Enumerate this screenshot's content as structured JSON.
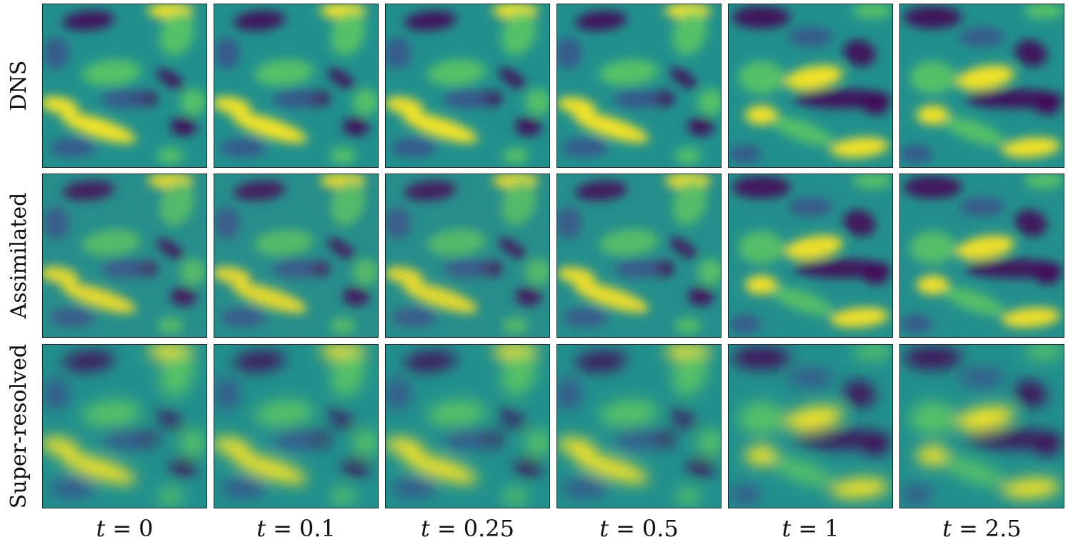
{
  "figure": {
    "rows": [
      {
        "label": "DNS",
        "texture": "smooth"
      },
      {
        "label": "Assimilated",
        "texture": "noisy"
      },
      {
        "label": "Super-resolved",
        "texture": "blurred"
      }
    ],
    "columns": [
      {
        "t_value": "0"
      },
      {
        "t_value": "0.1"
      },
      {
        "t_value": "0.25"
      },
      {
        "t_value": "0.5"
      },
      {
        "t_value": "1"
      },
      {
        "t_value": "2.5"
      }
    ],
    "time_symbol": "t",
    "equals_sign": "=",
    "colormap": {
      "name": "viridis",
      "background": "#21908d",
      "low": "#440154",
      "mid_low": "#3b528b",
      "mid_high": "#5ec962",
      "high": "#fde725"
    }
  }
}
